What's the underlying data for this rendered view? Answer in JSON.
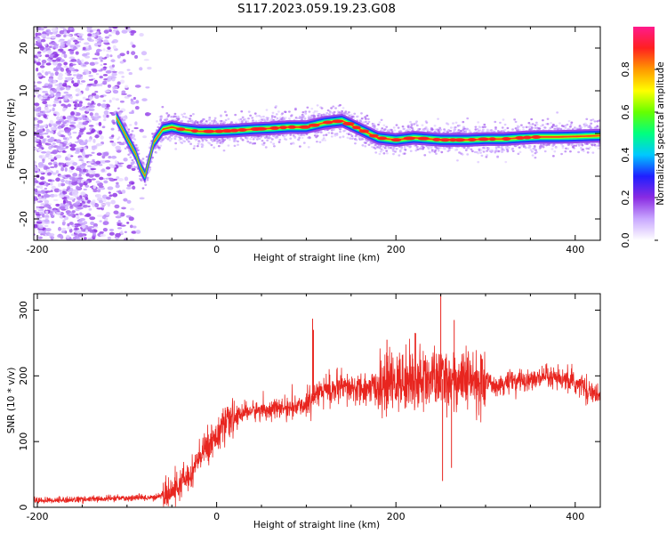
{
  "title": "S117.2023.059.19.23.G08",
  "chart_data": [
    {
      "type": "heatmap",
      "xlabel": "Height of straight line (km)",
      "ylabel": "Frequency (Hz)",
      "xlim": [
        -204,
        428
      ],
      "ylim": [
        -25,
        25
      ],
      "x_ticks": [
        -200,
        0,
        200,
        400
      ],
      "y_ticks": [
        -20,
        -10,
        0,
        10,
        20
      ],
      "colorbar": {
        "label": "Normalized spectral amplitude",
        "range": [
          0.0,
          1.0
        ],
        "ticks": [
          0.0,
          0.2,
          0.4,
          0.6,
          0.8
        ],
        "colors": [
          "#ffffff",
          "#c9a8ff",
          "#8a2be2",
          "#1f1fff",
          "#00c8ff",
          "#00ff7f",
          "#66ff00",
          "#ffff00",
          "#ff9900",
          "#ff2020",
          "#ff1a8c"
        ]
      },
      "ridge": {
        "x": [
          -120,
          -110,
          -100,
          -90,
          -85,
          -80,
          -75,
          -70,
          -60,
          -50,
          -40,
          -20,
          0,
          20,
          40,
          60,
          80,
          100,
          120,
          140,
          160,
          180,
          200,
          220,
          250,
          280,
          300,
          320,
          340,
          360,
          380,
          400,
          428
        ],
        "y": [
          7,
          3,
          -1,
          -5,
          -8,
          -10,
          -6,
          -2,
          1,
          1.5,
          1,
          0.5,
          0.5,
          0.7,
          1,
          1.2,
          1.5,
          1.5,
          2.5,
          3,
          1,
          -1,
          -1.5,
          -1,
          -1.5,
          -1.5,
          -1.3,
          -1.3,
          -1,
          -0.8,
          -0.8,
          -0.7,
          -0.5
        ]
      }
    },
    {
      "type": "line",
      "xlabel": "Height of straight line (km)",
      "ylabel": "SNR (10 * v/v)",
      "xlim": [
        -204,
        428
      ],
      "ylim": [
        0,
        325
      ],
      "x_ticks": [
        -200,
        0,
        200,
        400
      ],
      "y_ticks": [
        0,
        100,
        200,
        300
      ],
      "series": [
        {
          "color": "#e8251f",
          "trend": {
            "x": [
              -204,
              -150,
              -100,
              -70,
              -50,
              -30,
              -10,
              0,
              10,
              30,
              60,
              90,
              105,
              110,
              140,
              170,
              200,
              230,
              260,
              290,
              320,
              350,
              380,
              410,
              428
            ],
            "y": [
              10,
              12,
              14,
              15,
              22,
              50,
              95,
              110,
              125,
              145,
              150,
              152,
              160,
              178,
              180,
              180,
              190,
              195,
              195,
              190,
              188,
              195,
              195,
              185,
              165
            ]
          },
          "spikes": [
            {
              "x": 107,
              "y": 287
            },
            {
              "x": 108,
              "y": 270
            },
            {
              "x": 250,
              "y": 325
            },
            {
              "x": 252,
              "y": 40
            },
            {
              "x": 222,
              "y": 265
            },
            {
              "x": 190,
              "y": 255
            },
            {
              "x": 262,
              "y": 60
            },
            {
              "x": 265,
              "y": 285
            }
          ]
        }
      ]
    }
  ]
}
